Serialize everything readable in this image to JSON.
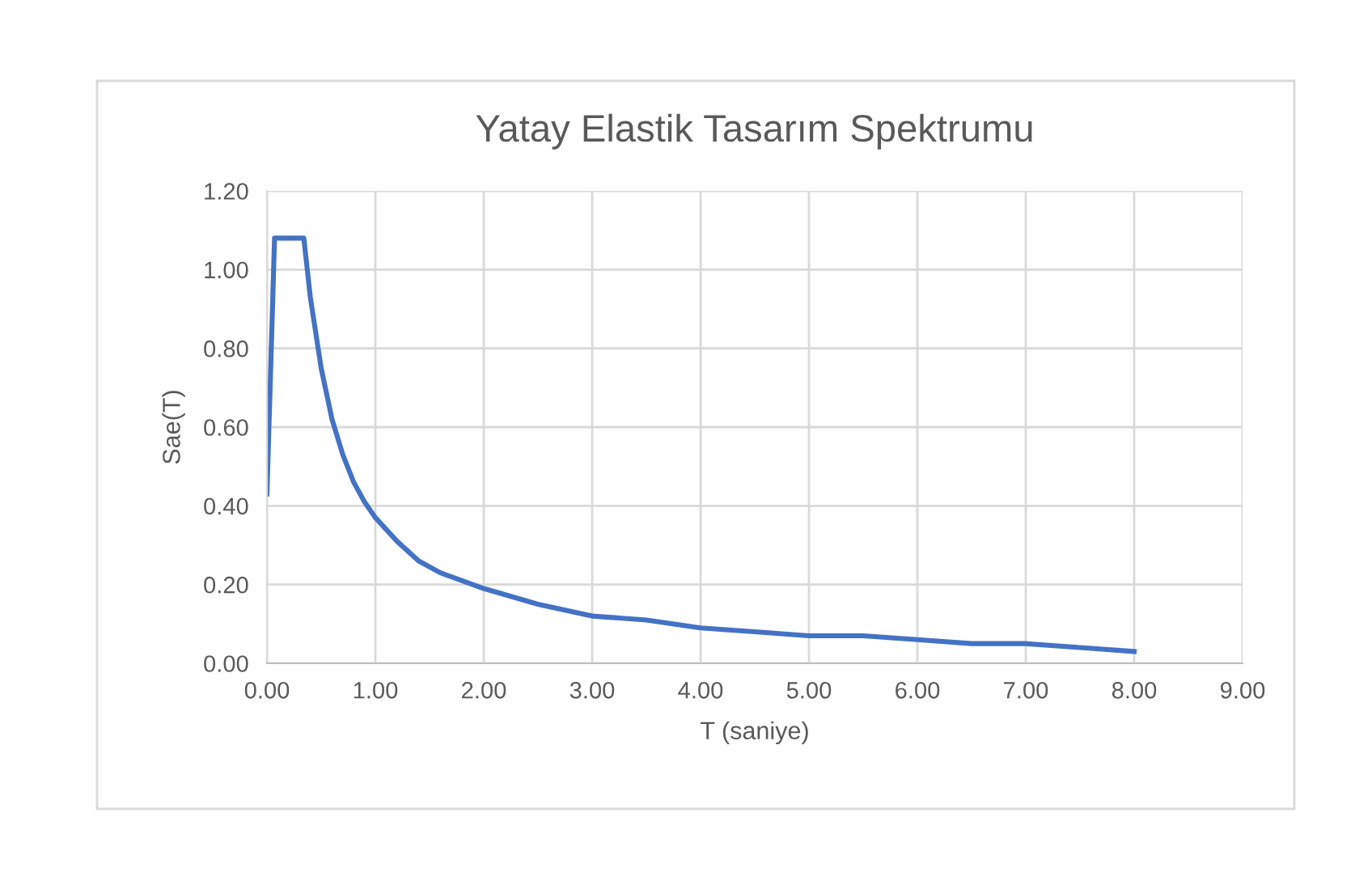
{
  "chart_data": {
    "type": "line",
    "title": "Yatay Elastik Tasarım Spektrumu",
    "xlabel": "T (saniye)",
    "ylabel": "Sae(T)",
    "x": [
      0,
      0.07,
      0.34,
      0.4,
      0.5,
      0.6,
      0.7,
      0.8,
      0.9,
      1.0,
      1.2,
      1.4,
      1.6,
      1.8,
      2.0,
      2.5,
      3.0,
      3.5,
      4.0,
      4.5,
      5.0,
      5.5,
      6.0,
      6.5,
      7.0,
      7.5,
      8.0
    ],
    "series": [
      {
        "color": "#4472c4",
        "values": [
          0.43,
          1.08,
          1.08,
          0.93,
          0.75,
          0.62,
          0.53,
          0.46,
          0.41,
          0.37,
          0.31,
          0.26,
          0.23,
          0.21,
          0.19,
          0.15,
          0.12,
          0.11,
          0.09,
          0.08,
          0.07,
          0.07,
          0.06,
          0.05,
          0.05,
          0.04,
          0.03
        ]
      }
    ],
    "xlim": [
      0,
      9
    ],
    "ylim": [
      0,
      1.2
    ],
    "xticks": [
      {
        "value": 0,
        "label": "0.00"
      },
      {
        "value": 1,
        "label": "1.00"
      },
      {
        "value": 2,
        "label": "2.00"
      },
      {
        "value": 3,
        "label": "3.00"
      },
      {
        "value": 4,
        "label": "4.00"
      },
      {
        "value": 5,
        "label": "5.00"
      },
      {
        "value": 6,
        "label": "6.00"
      },
      {
        "value": 7,
        "label": "7.00"
      },
      {
        "value": 8,
        "label": "8.00"
      },
      {
        "value": 9,
        "label": "9.00"
      }
    ],
    "yticks": [
      {
        "value": 0,
        "label": "0.00"
      },
      {
        "value": 0.2,
        "label": "0.20"
      },
      {
        "value": 0.4,
        "label": "0.40"
      },
      {
        "value": 0.6,
        "label": "0.60"
      },
      {
        "value": 0.8,
        "label": "0.80"
      },
      {
        "value": 1.0,
        "label": "1.00"
      },
      {
        "value": 1.2,
        "label": "1.20"
      }
    ],
    "grid": true,
    "marker": "none",
    "line_style": "solid",
    "legend": false
  }
}
